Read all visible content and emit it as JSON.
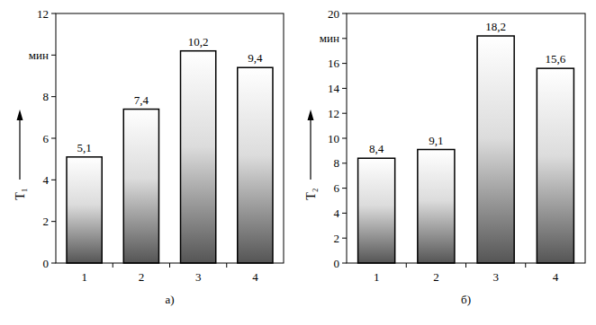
{
  "chart_data": [
    {
      "type": "bar",
      "x_label": "а)",
      "y_label": "T₁",
      "categories": [
        "1",
        "2",
        "3",
        "4"
      ],
      "values": [
        5.1,
        7.4,
        10.2,
        9.4
      ],
      "value_labels": [
        "5,1",
        "7,4",
        "10,2",
        "9,4"
      ],
      "color": "#555555",
      "data_labels": true,
      "ylim": [
        0,
        12
      ],
      "yticks": [
        0,
        2,
        4,
        6,
        8,
        {
          "value": 10,
          "label": "мин"
        },
        12
      ]
    },
    {
      "type": "bar",
      "x_label": "б)",
      "y_label": "T₂",
      "categories": [
        "1",
        "2",
        "3",
        "4"
      ],
      "values": [
        8.4,
        9.1,
        18.2,
        15.6
      ],
      "value_labels": [
        "8,4",
        "9,1",
        "18,2",
        "15,6"
      ],
      "color": "#555555",
      "data_labels": true,
      "ylim": [
        0,
        20
      ],
      "yticks": [
        0,
        2,
        4,
        6,
        8,
        10,
        12,
        14,
        16,
        {
          "value": 18,
          "label": "мин"
        },
        20
      ]
    }
  ]
}
